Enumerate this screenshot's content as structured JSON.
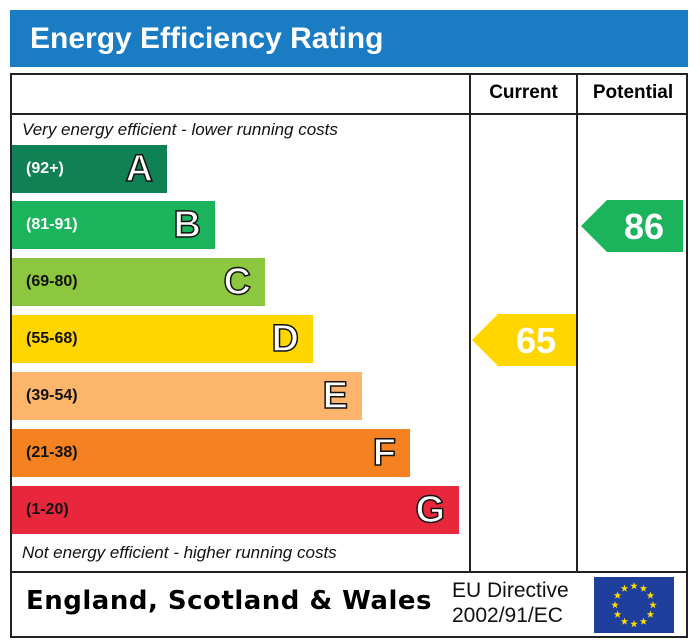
{
  "title": "Energy Efficiency Rating",
  "columns": {
    "current": "Current",
    "potential": "Potential"
  },
  "top_note": "Very energy efficient - lower running costs",
  "bottom_note": "Not energy efficient - higher running costs",
  "footer": {
    "country": "England, Scotland & Wales",
    "directive_line1": "EU Directive",
    "directive_line2": "2002/91/EC",
    "flag_icon": "eu-flag-icon"
  },
  "chart_data": {
    "type": "bar",
    "bands": [
      {
        "letter": "A",
        "range": "(92+)",
        "color": "#0f8154",
        "text_color": "#ffffff"
      },
      {
        "letter": "B",
        "range": "(81-91)",
        "color": "#1bb35c",
        "text_color": "#ffffff"
      },
      {
        "letter": "C",
        "range": "(69-80)",
        "color": "#8dc63f",
        "text_color": "#111111"
      },
      {
        "letter": "D",
        "range": "(55-68)",
        "color": "#ffd600",
        "text_color": "#111111"
      },
      {
        "letter": "E",
        "range": "(39-54)",
        "color": "#fcb56a",
        "text_color": "#111111"
      },
      {
        "letter": "F",
        "range": "(21-38)",
        "color": "#f58220",
        "text_color": "#111111"
      },
      {
        "letter": "G",
        "range": "(1-20)",
        "color": "#e8273c",
        "text_color": "#111111"
      }
    ],
    "current": {
      "value": 65,
      "band": "D",
      "color": "#ffd600"
    },
    "potential": {
      "value": 86,
      "band": "B",
      "color": "#1bb35c"
    }
  }
}
